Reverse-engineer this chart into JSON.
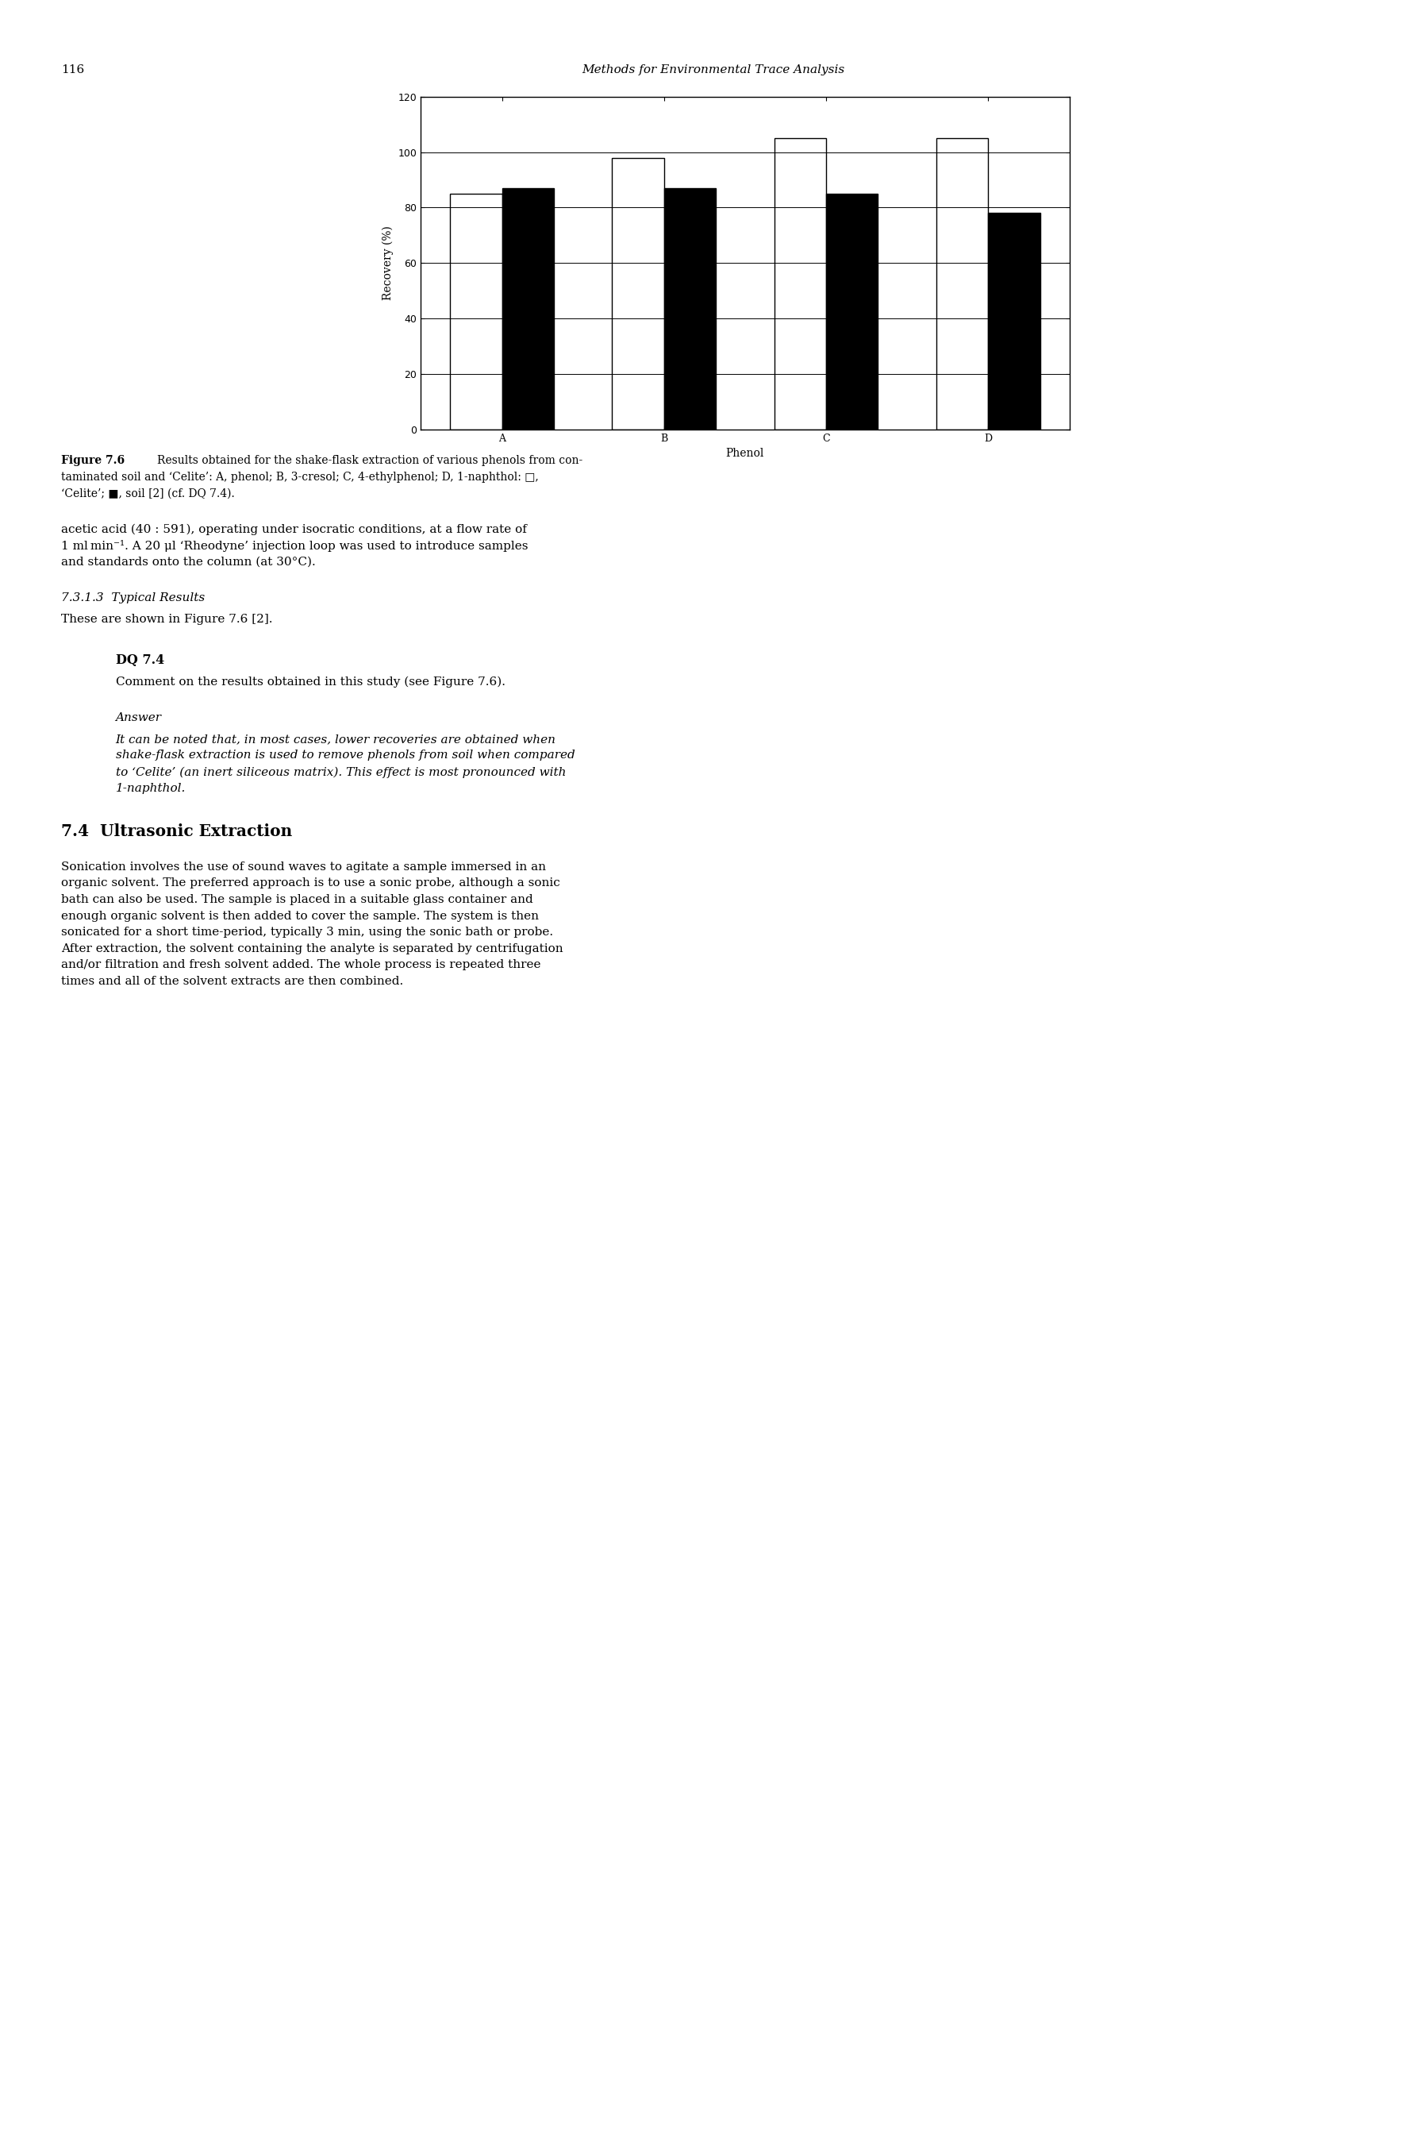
{
  "title_header": "Methods for Environmental Trace Analysis",
  "page_number": "116",
  "xlabel": "Phenol",
  "ylabel": "Recovery (%)",
  "ylim": [
    0,
    120
  ],
  "yticks": [
    0,
    20,
    40,
    60,
    80,
    100,
    120
  ],
  "groups": [
    "A",
    "B",
    "C",
    "D"
  ],
  "celite_values": [
    85,
    98,
    105,
    105
  ],
  "soil_values": [
    87,
    87,
    85,
    78
  ],
  "celite_color": "#ffffff",
  "soil_color": "#000000",
  "bar_edge_color": "#000000",
  "bar_width": 0.32,
  "background_color": "#ffffff",
  "text_color": "#000000",
  "caption_bold": "Figure 7.6",
  "caption_normal": "  Results obtained for the shake-flask extraction of various phenols from con-\ntaminated soil and ‘Celite’: A, phenol; B, 3-cresol; C, 4-ethylphenol; D, 1-naphthol: □,\n‘Celite’; ■, soil [2] (cf. DQ 7.4).",
  "body1_line1": "acetic acid (40 : 591), operating under isocratic conditions, at a flow rate of",
  "body1_line2": "1 ml min⁻¹. A 20 μl ‘Rheodyne’ injection loop was used to introduce samples",
  "body1_line3": "and standards onto the column (at 30°C).",
  "section_heading": "7.3.1.3  Typical Results",
  "body2": "These are shown in Figure 7.6 [2].",
  "dq_heading": "DQ 7.4",
  "dq_text": "Comment on the results obtained in this study (see Figure 7.6).",
  "answer_heading": "Answer",
  "answer_line1": "It can be noted that, in most cases, lower recoveries are obtained when",
  "answer_line2": "shake-flask extraction is used to remove phenols from soil when compared",
  "answer_line3": "to ‘Celite’ (an inert siliceous matrix). This effect is most pronounced with",
  "answer_line4": "1-naphthol.",
  "section2_heading": "7.4  Ultrasonic Extraction",
  "section2_line1": "Sonication involves the use of sound waves to agitate a sample immersed in an",
  "section2_line2": "organic solvent. The preferred approach is to use a sonic probe, although a sonic",
  "section2_line3": "bath can also be used. The sample is placed in a suitable glass container and",
  "section2_line4": "enough organic solvent is then added to cover the sample. The system is then",
  "section2_line5": "sonicated for a short time-period, typically 3 min, using the sonic bath or probe.",
  "section2_line6": "After extraction, the solvent containing the analyte is separated by centrifugation",
  "section2_line7": "and/or filtration and fresh solvent added. The whole process is repeated three",
  "section2_line8": "times and all of the solvent extracts are then combined."
}
